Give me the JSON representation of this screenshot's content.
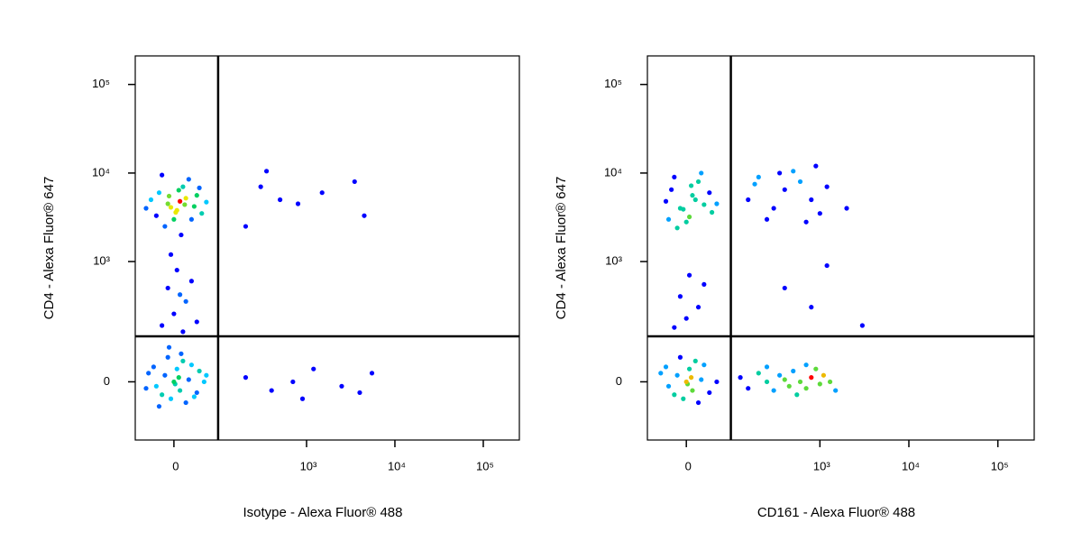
{
  "chart_data": [
    {
      "type": "scatter",
      "scale": "biexponential",
      "xlabel": "Isotype - Alexa Fluor® 488",
      "ylabel": "CD4 - Alexa Fluor® 647",
      "color": "#0000ff",
      "density_colors": [
        "#0000ff",
        "#00c8ff",
        "#00d060",
        "#e8e800",
        "#ff0000"
      ],
      "xlim": [
        -75,
        256000
      ],
      "ylim": [
        -190,
        210000
      ],
      "xticks": [
        0,
        {
          "value": 1000,
          "label": "10³"
        },
        {
          "value": 10000,
          "label": "10⁴"
        },
        {
          "value": 100000,
          "label": "10⁵"
        }
      ],
      "yticks": [
        0,
        {
          "value": 1000,
          "label": "10³"
        },
        {
          "value": 10000,
          "label": "10⁴"
        },
        {
          "value": 100000,
          "label": "10⁵"
        }
      ],
      "gates": {
        "x": 90,
        "y": 130
      },
      "x": [
        -10,
        20,
        5,
        -25,
        35,
        0,
        15,
        -40,
        50,
        10,
        -15,
        25,
        -5,
        40,
        -30,
        8,
        60,
        -20,
        12,
        30,
        -8,
        18,
        -50,
        3,
        45,
        5,
        -10,
        20,
        0,
        30,
        -20,
        10,
        40,
        -5,
        15,
        0,
        10,
        -15,
        25,
        -30,
        5,
        40,
        -5,
        15,
        -45,
        30,
        -20,
        8,
        55,
        -10,
        20,
        -35,
        2,
        45,
        -25,
        12,
        35,
        -8,
        60,
        -50,
        300,
        500,
        200,
        800,
        1500,
        3500,
        4500,
        350,
        200,
        400,
        700,
        1200,
        2500,
        4000,
        5500,
        900
      ],
      "y": [
        4500,
        5200,
        3800,
        6000,
        4200,
        3000,
        7000,
        5000,
        3500,
        4800,
        2500,
        8500,
        4100,
        5600,
        3300,
        6400,
        4700,
        9500,
        2000,
        3000,
        5500,
        4400,
        4000,
        3600,
        6800,
        800,
        500,
        350,
        250,
        600,
        180,
        420,
        200,
        1200,
        150,
        0,
        -20,
        15,
        5,
        -10,
        30,
        -25,
        -40,
        50,
        20,
        40,
        -30,
        10,
        0,
        60,
        -50,
        35,
        -5,
        25,
        -60,
        70,
        -35,
        90,
        15,
        -15,
        7000,
        5000,
        2500,
        4500,
        6000,
        8000,
        3300,
        10500,
        10,
        -20,
        0,
        30,
        -10,
        -25,
        20,
        -40
      ]
    },
    {
      "type": "scatter",
      "scale": "biexponential",
      "xlabel": "CD161 - Alexa Fluor® 488",
      "ylabel": "CD4 - Alexa Fluor® 647",
      "color": "#0000ff",
      "density_colors": [
        "#0000ff",
        "#00c8ff",
        "#00d060",
        "#e8e800",
        "#ff0000"
      ],
      "xlim": [
        -75,
        256000
      ],
      "ylim": [
        -190,
        210000
      ],
      "xticks": [
        0,
        {
          "value": 1000,
          "label": "10³"
        },
        {
          "value": 10000,
          "label": "10⁴"
        },
        {
          "value": 100000,
          "label": "10⁵"
        }
      ],
      "yticks": [
        0,
        {
          "value": 1000,
          "label": "10³"
        },
        {
          "value": 10000,
          "label": "10⁴"
        },
        {
          "value": 100000,
          "label": "10⁵"
        }
      ],
      "gates": {
        "x": 90,
        "y": 130
      },
      "x": [
        -10,
        15,
        5,
        -25,
        30,
        0,
        20,
        -35,
        45,
        10,
        -15,
        25,
        -5,
        40,
        -30,
        8,
        55,
        -20,
        150,
        200,
        300,
        400,
        250,
        600,
        800,
        1000,
        500,
        1200,
        700,
        350,
        2000,
        900,
        180,
        5,
        -10,
        20,
        0,
        30,
        -20,
        400,
        800,
        1200,
        3000,
        0,
        10,
        -15,
        25,
        -30,
        5,
        40,
        -5,
        15,
        -45,
        30,
        -20,
        8,
        55,
        -10,
        20,
        -35,
        2,
        120,
        150,
        200,
        250,
        300,
        350,
        400,
        450,
        500,
        600,
        700,
        800,
        900,
        1000,
        1100,
        1300,
        1500,
        700,
        550,
        250
      ],
      "y": [
        4000,
        5000,
        3200,
        6500,
        4400,
        2800,
        8000,
        4800,
        3600,
        5600,
        2400,
        10000,
        3900,
        6000,
        3000,
        7200,
        4500,
        9000,
        5000,
        9000,
        4000,
        6500,
        3000,
        8000,
        5000,
        3500,
        10500,
        7000,
        2800,
        10000,
        4000,
        12000,
        7500,
        700,
        400,
        300,
        220,
        550,
        170,
        500,
        300,
        900,
        180,
        0,
        -20,
        15,
        5,
        -10,
        30,
        -25,
        -40,
        50,
        20,
        40,
        -30,
        10,
        0,
        60,
        -50,
        35,
        -5,
        10,
        -15,
        20,
        0,
        -20,
        15,
        5,
        -10,
        25,
        0,
        -15,
        10,
        30,
        -5,
        15,
        0,
        -20,
        40,
        -30,
        35
      ]
    }
  ]
}
